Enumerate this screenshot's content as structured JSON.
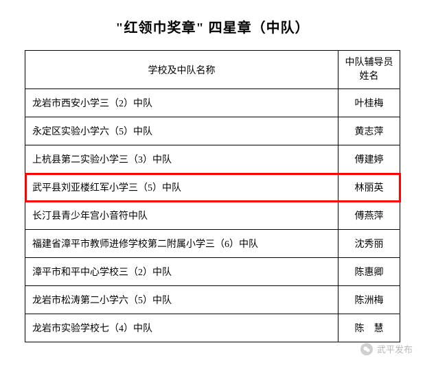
{
  "title": "\"红领巾奖章\" 四星章（中队）",
  "table": {
    "columns": {
      "school": "学校及中队名称",
      "advisor": "中队辅导员姓名"
    },
    "rows": [
      {
        "school": "龙岩市西安小学三（2）中队",
        "advisor": "叶桂梅",
        "highlight": false
      },
      {
        "school": "永定区实验小学六（5）中队",
        "advisor": "黄志萍",
        "highlight": false
      },
      {
        "school": "上杭县第二实验小学三（3）中队",
        "advisor": "傅建婷",
        "highlight": false
      },
      {
        "school": "武平县刘亚楼红军小学三（5）中队",
        "advisor": "林丽英",
        "highlight": true
      },
      {
        "school": "长汀县青少年宫小音符中队",
        "advisor": "傅燕萍",
        "highlight": false
      },
      {
        "school": "福建省漳平市教师进修学校第二附属小学三（6）中队",
        "advisor": "沈秀丽",
        "highlight": false
      },
      {
        "school": "漳平市和平中心学校三（2）中队",
        "advisor": "陈惠卿",
        "highlight": false
      },
      {
        "school": "龙岩市松涛第二小学六（5）中队",
        "advisor": "陈洲梅",
        "highlight": false
      },
      {
        "school": "龙岩市实验学校七（4）中队",
        "advisor": "陈　慧",
        "highlight": false
      }
    ]
  },
  "watermark": {
    "text": "武平发布"
  },
  "colors": {
    "highlight_border": "#ff0000",
    "text": "#000000",
    "border": "#000000",
    "background": "#ffffff",
    "watermark_text": "#b8b8b8"
  }
}
